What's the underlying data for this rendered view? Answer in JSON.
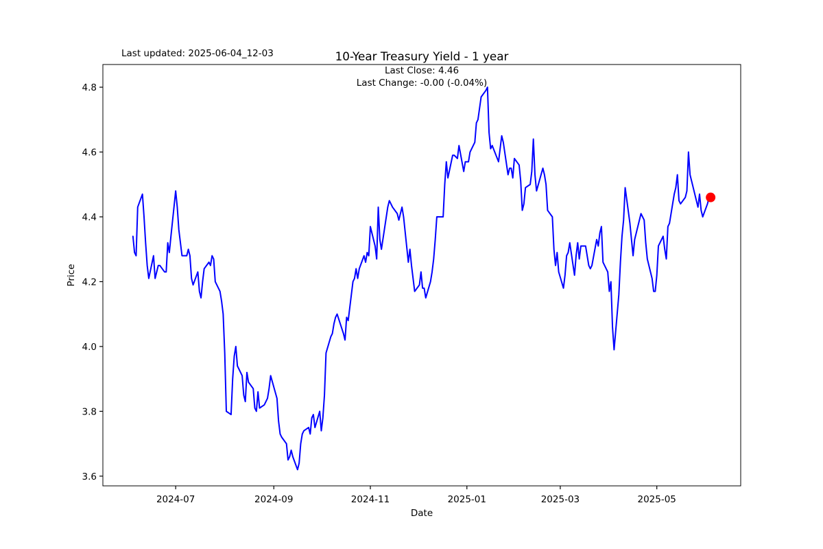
{
  "header": {
    "last_updated": "Last updated: 2025-06-04_12-03"
  },
  "chart_data": {
    "type": "line",
    "title": "10-Year Treasury Yield - 1 year",
    "subtitle_line1": "Last Close: 4.46",
    "subtitle_line2": "Last Change: -0.00 (-0.04%)",
    "xlabel": "Date",
    "ylabel": "Price",
    "last_close": 4.46,
    "last_change_abs": "-0.00",
    "last_change_pct": "-0.04%",
    "line_color": "#0000ff",
    "marker_color": "#ff0000",
    "axis_color": "#000000",
    "grid": false,
    "legend": null,
    "ylim": [
      3.57,
      4.87
    ],
    "xlim": [
      "2024-05-16",
      "2025-06-23"
    ],
    "yticks": [
      {
        "label": "3.6",
        "value": 3.6
      },
      {
        "label": "3.8",
        "value": 3.8
      },
      {
        "label": "4.0",
        "value": 4.0
      },
      {
        "label": "4.2",
        "value": 4.2
      },
      {
        "label": "4.4",
        "value": 4.4
      },
      {
        "label": "4.6",
        "value": 4.6
      },
      {
        "label": "4.8",
        "value": 4.8
      }
    ],
    "xticks": [
      {
        "label": "2024-07",
        "date": "2024-07-01"
      },
      {
        "label": "2024-09",
        "date": "2024-09-01"
      },
      {
        "label": "2024-11",
        "date": "2024-11-01"
      },
      {
        "label": "2025-01",
        "date": "2025-01-01"
      },
      {
        "label": "2025-03",
        "date": "2025-03-01"
      },
      {
        "label": "2025-05",
        "date": "2025-05-01"
      }
    ],
    "series": [
      {
        "name": "10-Year Treasury Yield",
        "points": [
          [
            "2024-06-04",
            4.34
          ],
          [
            "2024-06-05",
            4.29
          ],
          [
            "2024-06-06",
            4.28
          ],
          [
            "2024-06-07",
            4.43
          ],
          [
            "2024-06-10",
            4.47
          ],
          [
            "2024-06-11",
            4.4
          ],
          [
            "2024-06-12",
            4.32
          ],
          [
            "2024-06-13",
            4.25
          ],
          [
            "2024-06-14",
            4.21
          ],
          [
            "2024-06-17",
            4.28
          ],
          [
            "2024-06-18",
            4.21
          ],
          [
            "2024-06-20",
            4.25
          ],
          [
            "2024-06-21",
            4.25
          ],
          [
            "2024-06-24",
            4.23
          ],
          [
            "2024-06-25",
            4.23
          ],
          [
            "2024-06-26",
            4.32
          ],
          [
            "2024-06-27",
            4.29
          ],
          [
            "2024-06-28",
            4.34
          ],
          [
            "2024-07-01",
            4.48
          ],
          [
            "2024-07-02",
            4.43
          ],
          [
            "2024-07-03",
            4.36
          ],
          [
            "2024-07-05",
            4.28
          ],
          [
            "2024-07-08",
            4.28
          ],
          [
            "2024-07-09",
            4.3
          ],
          [
            "2024-07-10",
            4.28
          ],
          [
            "2024-07-11",
            4.21
          ],
          [
            "2024-07-12",
            4.19
          ],
          [
            "2024-07-15",
            4.23
          ],
          [
            "2024-07-16",
            4.17
          ],
          [
            "2024-07-17",
            4.15
          ],
          [
            "2024-07-18",
            4.2
          ],
          [
            "2024-07-19",
            4.24
          ],
          [
            "2024-07-22",
            4.26
          ],
          [
            "2024-07-23",
            4.25
          ],
          [
            "2024-07-24",
            4.28
          ],
          [
            "2024-07-25",
            4.27
          ],
          [
            "2024-07-26",
            4.2
          ],
          [
            "2024-07-29",
            4.17
          ],
          [
            "2024-07-30",
            4.14
          ],
          [
            "2024-07-31",
            4.1
          ],
          [
            "2024-08-01",
            3.98
          ],
          [
            "2024-08-02",
            3.8
          ],
          [
            "2024-08-05",
            3.79
          ],
          [
            "2024-08-06",
            3.9
          ],
          [
            "2024-08-07",
            3.97
          ],
          [
            "2024-08-08",
            4.0
          ],
          [
            "2024-08-09",
            3.94
          ],
          [
            "2024-08-12",
            3.91
          ],
          [
            "2024-08-13",
            3.85
          ],
          [
            "2024-08-14",
            3.83
          ],
          [
            "2024-08-15",
            3.92
          ],
          [
            "2024-08-16",
            3.89
          ],
          [
            "2024-08-19",
            3.87
          ],
          [
            "2024-08-20",
            3.81
          ],
          [
            "2024-08-21",
            3.8
          ],
          [
            "2024-08-22",
            3.86
          ],
          [
            "2024-08-23",
            3.81
          ],
          [
            "2024-08-26",
            3.82
          ],
          [
            "2024-08-27",
            3.83
          ],
          [
            "2024-08-28",
            3.84
          ],
          [
            "2024-08-29",
            3.87
          ],
          [
            "2024-08-30",
            3.91
          ],
          [
            "2024-09-03",
            3.84
          ],
          [
            "2024-09-04",
            3.77
          ],
          [
            "2024-09-05",
            3.73
          ],
          [
            "2024-09-06",
            3.72
          ],
          [
            "2024-09-09",
            3.7
          ],
          [
            "2024-09-10",
            3.65
          ],
          [
            "2024-09-11",
            3.66
          ],
          [
            "2024-09-12",
            3.68
          ],
          [
            "2024-09-13",
            3.66
          ],
          [
            "2024-09-16",
            3.62
          ],
          [
            "2024-09-17",
            3.64
          ],
          [
            "2024-09-18",
            3.7
          ],
          [
            "2024-09-19",
            3.73
          ],
          [
            "2024-09-20",
            3.74
          ],
          [
            "2024-09-23",
            3.75
          ],
          [
            "2024-09-24",
            3.73
          ],
          [
            "2024-09-25",
            3.78
          ],
          [
            "2024-09-26",
            3.79
          ],
          [
            "2024-09-27",
            3.75
          ],
          [
            "2024-09-30",
            3.8
          ],
          [
            "2024-10-01",
            3.74
          ],
          [
            "2024-10-02",
            3.78
          ],
          [
            "2024-10-03",
            3.85
          ],
          [
            "2024-10-04",
            3.98
          ],
          [
            "2024-10-07",
            4.03
          ],
          [
            "2024-10-08",
            4.04
          ],
          [
            "2024-10-09",
            4.07
          ],
          [
            "2024-10-10",
            4.09
          ],
          [
            "2024-10-11",
            4.1
          ],
          [
            "2024-10-15",
            4.04
          ],
          [
            "2024-10-16",
            4.02
          ],
          [
            "2024-10-17",
            4.09
          ],
          [
            "2024-10-18",
            4.08
          ],
          [
            "2024-10-21",
            4.2
          ],
          [
            "2024-10-22",
            4.21
          ],
          [
            "2024-10-23",
            4.24
          ],
          [
            "2024-10-24",
            4.21
          ],
          [
            "2024-10-25",
            4.24
          ],
          [
            "2024-10-28",
            4.28
          ],
          [
            "2024-10-29",
            4.26
          ],
          [
            "2024-10-30",
            4.29
          ],
          [
            "2024-10-31",
            4.28
          ],
          [
            "2024-11-01",
            4.37
          ],
          [
            "2024-11-04",
            4.31
          ],
          [
            "2024-11-05",
            4.27
          ],
          [
            "2024-11-06",
            4.43
          ],
          [
            "2024-11-07",
            4.33
          ],
          [
            "2024-11-08",
            4.3
          ],
          [
            "2024-11-12",
            4.43
          ],
          [
            "2024-11-13",
            4.45
          ],
          [
            "2024-11-14",
            4.44
          ],
          [
            "2024-11-15",
            4.43
          ],
          [
            "2024-11-18",
            4.41
          ],
          [
            "2024-11-19",
            4.39
          ],
          [
            "2024-11-20",
            4.41
          ],
          [
            "2024-11-21",
            4.43
          ],
          [
            "2024-11-22",
            4.4
          ],
          [
            "2024-11-25",
            4.26
          ],
          [
            "2024-11-26",
            4.3
          ],
          [
            "2024-11-27",
            4.25
          ],
          [
            "2024-11-29",
            4.17
          ],
          [
            "2024-12-02",
            4.19
          ],
          [
            "2024-12-03",
            4.23
          ],
          [
            "2024-12-04",
            4.18
          ],
          [
            "2024-12-05",
            4.18
          ],
          [
            "2024-12-06",
            4.15
          ],
          [
            "2024-12-09",
            4.2
          ],
          [
            "2024-12-10",
            4.23
          ],
          [
            "2024-12-11",
            4.27
          ],
          [
            "2024-12-12",
            4.33
          ],
          [
            "2024-12-13",
            4.4
          ],
          [
            "2024-12-16",
            4.4
          ],
          [
            "2024-12-17",
            4.4
          ],
          [
            "2024-12-18",
            4.5
          ],
          [
            "2024-12-19",
            4.57
          ],
          [
            "2024-12-20",
            4.52
          ],
          [
            "2024-12-23",
            4.59
          ],
          [
            "2024-12-24",
            4.59
          ],
          [
            "2024-12-26",
            4.58
          ],
          [
            "2024-12-27",
            4.62
          ],
          [
            "2024-12-30",
            4.54
          ],
          [
            "2024-12-31",
            4.57
          ],
          [
            "2025-01-02",
            4.57
          ],
          [
            "2025-01-03",
            4.6
          ],
          [
            "2025-01-06",
            4.63
          ],
          [
            "2025-01-07",
            4.69
          ],
          [
            "2025-01-08",
            4.7
          ],
          [
            "2025-01-10",
            4.77
          ],
          [
            "2025-01-13",
            4.79
          ],
          [
            "2025-01-14",
            4.8
          ],
          [
            "2025-01-15",
            4.66
          ],
          [
            "2025-01-16",
            4.61
          ],
          [
            "2025-01-17",
            4.62
          ],
          [
            "2025-01-21",
            4.57
          ],
          [
            "2025-01-22",
            4.61
          ],
          [
            "2025-01-23",
            4.65
          ],
          [
            "2025-01-24",
            4.63
          ],
          [
            "2025-01-27",
            4.53
          ],
          [
            "2025-01-28",
            4.55
          ],
          [
            "2025-01-29",
            4.55
          ],
          [
            "2025-01-30",
            4.52
          ],
          [
            "2025-01-31",
            4.58
          ],
          [
            "2025-02-03",
            4.56
          ],
          [
            "2025-02-04",
            4.51
          ],
          [
            "2025-02-05",
            4.42
          ],
          [
            "2025-02-06",
            4.44
          ],
          [
            "2025-02-07",
            4.49
          ],
          [
            "2025-02-10",
            4.5
          ],
          [
            "2025-02-11",
            4.54
          ],
          [
            "2025-02-12",
            4.64
          ],
          [
            "2025-02-13",
            4.53
          ],
          [
            "2025-02-14",
            4.48
          ],
          [
            "2025-02-18",
            4.55
          ],
          [
            "2025-02-19",
            4.53
          ],
          [
            "2025-02-20",
            4.5
          ],
          [
            "2025-02-21",
            4.42
          ],
          [
            "2025-02-24",
            4.4
          ],
          [
            "2025-02-25",
            4.3
          ],
          [
            "2025-02-26",
            4.25
          ],
          [
            "2025-02-27",
            4.29
          ],
          [
            "2025-02-28",
            4.23
          ],
          [
            "2025-03-03",
            4.18
          ],
          [
            "2025-03-04",
            4.22
          ],
          [
            "2025-03-05",
            4.28
          ],
          [
            "2025-03-06",
            4.29
          ],
          [
            "2025-03-07",
            4.32
          ],
          [
            "2025-03-10",
            4.22
          ],
          [
            "2025-03-11",
            4.28
          ],
          [
            "2025-03-12",
            4.32
          ],
          [
            "2025-03-13",
            4.27
          ],
          [
            "2025-03-14",
            4.31
          ],
          [
            "2025-03-17",
            4.31
          ],
          [
            "2025-03-18",
            4.28
          ],
          [
            "2025-03-19",
            4.25
          ],
          [
            "2025-03-20",
            4.24
          ],
          [
            "2025-03-21",
            4.25
          ],
          [
            "2025-03-24",
            4.33
          ],
          [
            "2025-03-25",
            4.31
          ],
          [
            "2025-03-26",
            4.35
          ],
          [
            "2025-03-27",
            4.37
          ],
          [
            "2025-03-28",
            4.26
          ],
          [
            "2025-03-31",
            4.23
          ],
          [
            "2025-04-01",
            4.17
          ],
          [
            "2025-04-02",
            4.2
          ],
          [
            "2025-04-03",
            4.06
          ],
          [
            "2025-04-04",
            3.99
          ],
          [
            "2025-04-07",
            4.16
          ],
          [
            "2025-04-08",
            4.26
          ],
          [
            "2025-04-09",
            4.34
          ],
          [
            "2025-04-10",
            4.39
          ],
          [
            "2025-04-11",
            4.49
          ],
          [
            "2025-04-14",
            4.38
          ],
          [
            "2025-04-15",
            4.33
          ],
          [
            "2025-04-16",
            4.28
          ],
          [
            "2025-04-17",
            4.33
          ],
          [
            "2025-04-21",
            4.41
          ],
          [
            "2025-04-22",
            4.4
          ],
          [
            "2025-04-23",
            4.39
          ],
          [
            "2025-04-24",
            4.32
          ],
          [
            "2025-04-25",
            4.27
          ],
          [
            "2025-04-28",
            4.21
          ],
          [
            "2025-04-29",
            4.17
          ],
          [
            "2025-04-30",
            4.17
          ],
          [
            "2025-05-01",
            4.22
          ],
          [
            "2025-05-02",
            4.31
          ],
          [
            "2025-05-05",
            4.34
          ],
          [
            "2025-05-06",
            4.3
          ],
          [
            "2025-05-07",
            4.27
          ],
          [
            "2025-05-08",
            4.37
          ],
          [
            "2025-05-09",
            4.38
          ],
          [
            "2025-05-12",
            4.47
          ],
          [
            "2025-05-13",
            4.49
          ],
          [
            "2025-05-14",
            4.53
          ],
          [
            "2025-05-15",
            4.45
          ],
          [
            "2025-05-16",
            4.44
          ],
          [
            "2025-05-19",
            4.46
          ],
          [
            "2025-05-20",
            4.48
          ],
          [
            "2025-05-21",
            4.6
          ],
          [
            "2025-05-22",
            4.53
          ],
          [
            "2025-05-23",
            4.51
          ],
          [
            "2025-05-27",
            4.43
          ],
          [
            "2025-05-28",
            4.47
          ],
          [
            "2025-05-29",
            4.42
          ],
          [
            "2025-05-30",
            4.4
          ],
          [
            "2025-06-02",
            4.44
          ],
          [
            "2025-06-03",
            4.46
          ],
          [
            "2025-06-04",
            4.46
          ]
        ]
      }
    ]
  }
}
